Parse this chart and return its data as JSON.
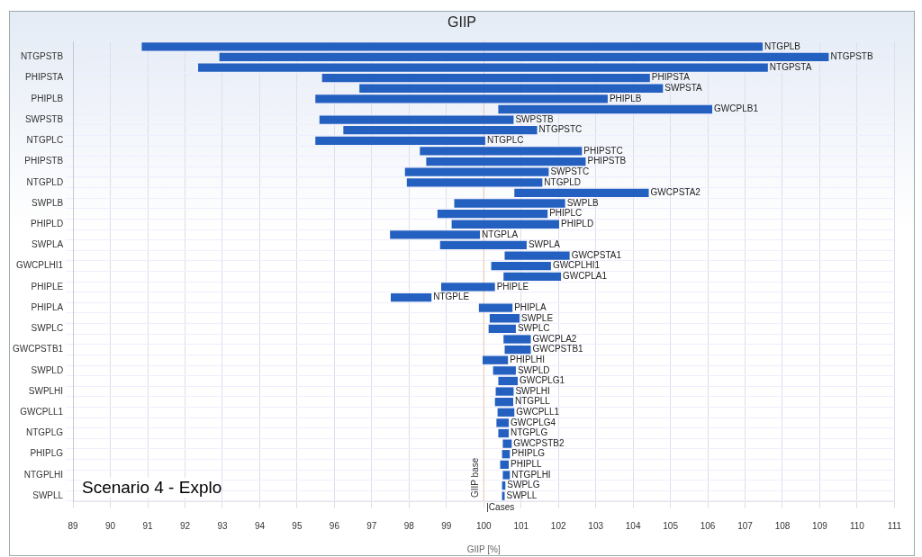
{
  "chart_data": {
    "type": "bar",
    "orientation": "horizontal",
    "title": "GIIP",
    "xlabel": "GIIP [%]",
    "categories": [
      "NTGPLB",
      "NTGPSTB",
      "NTGPSTA",
      "PHIPSTA",
      "SWPSTA",
      "PHIPLB",
      "GWCPLB1",
      "SWPSTB",
      "NTGPSTC",
      "NTGPLC",
      "PHIPSTC",
      "PHIPSTB",
      "SWPSTC",
      "NTGPLD",
      "GWCPSTA2",
      "SWPLB",
      "PHIPLC",
      "PHIPLD",
      "NTGPLA",
      "SWPLA",
      "GWCPSTA1",
      "GWCPLHI1",
      "GWCPLA1",
      "PHIPLE",
      "NTGPLE",
      "PHIPLA",
      "SWPLE",
      "SWPLC",
      "GWCPLA2",
      "GWCPSTB1",
      "PHIPLHI",
      "SWPLD",
      "GWCPLG1",
      "SWPLHI",
      "NTGPLL",
      "GWCPLL1",
      "GWCPLG4",
      "NTGPLG",
      "GWCPSTB2",
      "PHIPLG",
      "PHIPLL",
      "NTGPLHI",
      "SWPLG",
      "SWPLL"
    ],
    "base": [
      90.84,
      92.92,
      92.35,
      95.67,
      96.67,
      95.49,
      100.39,
      95.6,
      96.24,
      95.49,
      98.29,
      98.46,
      97.89,
      97.94,
      100.82,
      99.21,
      98.76,
      99.14,
      97.49,
      98.83,
      100.56,
      100.2,
      100.53,
      98.86,
      97.51,
      99.87,
      100.16,
      100.13,
      100.53,
      100.56,
      99.97,
      100.25,
      100.39,
      100.32,
      100.3,
      100.37,
      100.34,
      100.39,
      100.51,
      100.49,
      100.44,
      100.51,
      100.49,
      100.49
    ],
    "values": [
      16.63,
      16.32,
      15.26,
      8.78,
      8.13,
      7.83,
      5.73,
      5.2,
      5.19,
      4.55,
      4.34,
      4.27,
      3.85,
      3.63,
      3.6,
      2.97,
      2.95,
      2.88,
      2.41,
      2.32,
      1.74,
      1.6,
      1.54,
      1.44,
      1.09,
      0.9,
      0.8,
      0.73,
      0.73,
      0.7,
      0.68,
      0.61,
      0.52,
      0.48,
      0.49,
      0.45,
      0.33,
      0.28,
      0.24,
      0.21,
      0.23,
      0.19,
      0.09,
      0.07
    ],
    "color": "#2460c0",
    "xlim": [
      89,
      111
    ],
    "xticks": [
      89,
      90,
      91,
      92,
      93,
      94,
      95,
      96,
      97,
      98,
      99,
      100,
      101,
      102,
      103,
      104,
      105,
      106,
      107,
      108,
      109,
      110,
      111
    ],
    "ref_lines": [
      {
        "axis": "x",
        "value": 100,
        "label": "GIIP base",
        "color": "#f0c8b0"
      }
    ],
    "annotations": [
      "|Cases",
      "Scenario 4 - Explo"
    ],
    "grid": true,
    "legend": false
  }
}
